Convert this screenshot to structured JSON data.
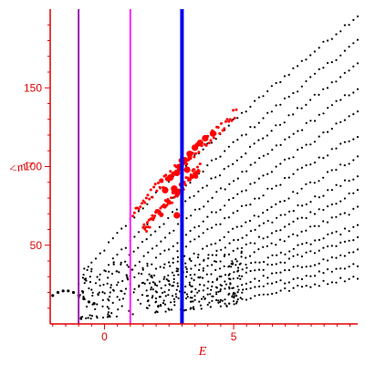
{
  "chart_data": {
    "type": "scatter",
    "title": "",
    "xlabel": "E",
    "ylabel": "<m>",
    "xlim": [
      -2.1,
      9.8
    ],
    "ylim": [
      0,
      200
    ],
    "x_ticks": [
      "0",
      "5"
    ],
    "y_ticks": [
      "50",
      "100",
      "150"
    ],
    "x_tick_values": [
      0,
      5
    ],
    "y_tick_values": [
      50,
      100,
      150
    ],
    "grid": false,
    "colors": {
      "axes": "#e00000",
      "points": "#000000",
      "highlight": "#ff0000",
      "line_dark": "#9a1fb0",
      "line_magenta": "#ff22ff",
      "line_blue": "#0000ee"
    },
    "vertical_lines": [
      {
        "x": -1.0,
        "color": "line_dark"
      },
      {
        "x": 1.0,
        "color": "line_magenta"
      },
      {
        "x": 3.0,
        "color": "line_blue"
      }
    ],
    "series": [
      {
        "family": "black-bands",
        "color": "points",
        "bands": [
          {
            "x0": -1.0,
            "y0": 25,
            "x1": 9.8,
            "y1": 196
          },
          {
            "x0": -0.5,
            "y0": 22,
            "x1": 9.8,
            "y1": 180
          },
          {
            "x0": -0.2,
            "y0": 20,
            "x1": 9.8,
            "y1": 165
          },
          {
            "x0": 0.2,
            "y0": 18,
            "x1": 9.8,
            "y1": 150
          },
          {
            "x0": 0.5,
            "y0": 16,
            "x1": 9.8,
            "y1": 135
          },
          {
            "x0": 1.0,
            "y0": 18,
            "x1": 9.8,
            "y1": 120
          },
          {
            "x0": 1.3,
            "y0": 15,
            "x1": 9.8,
            "y1": 106
          },
          {
            "x0": 1.7,
            "y0": 15,
            "x1": 9.8,
            "y1": 94
          },
          {
            "x0": 2.0,
            "y0": 15,
            "x1": 9.8,
            "y1": 84
          },
          {
            "x0": 2.3,
            "y0": 15,
            "x1": 9.8,
            "y1": 73
          },
          {
            "x0": 2.7,
            "y0": 15,
            "x1": 9.8,
            "y1": 62
          },
          {
            "x0": 3.0,
            "y0": 14,
            "x1": 9.8,
            "y1": 55
          },
          {
            "x0": 3.5,
            "y0": 14,
            "x1": 9.8,
            "y1": 46
          },
          {
            "x0": 4.0,
            "y0": 13,
            "x1": 9.8,
            "y1": 38
          },
          {
            "x0": 4.5,
            "y0": 12,
            "x1": 9.8,
            "y1": 30
          }
        ]
      },
      {
        "family": "black-low-cluster",
        "color": "points",
        "x_range": [
          -1.0,
          5.5
        ],
        "y_range": [
          4,
          40
        ]
      },
      {
        "family": "black-hook",
        "color": "points",
        "points": [
          [
            -2.0,
            18
          ],
          [
            -1.8,
            20
          ],
          [
            -1.6,
            21
          ],
          [
            -1.4,
            21
          ],
          [
            -1.2,
            20
          ],
          [
            -1.0,
            18
          ],
          [
            -0.8,
            16
          ],
          [
            -0.6,
            14
          ],
          [
            -0.4,
            13
          ]
        ]
      },
      {
        "family": "red-upper",
        "color": "highlight",
        "x_range": [
          1.1,
          5.1
        ],
        "y_from": 72,
        "y_to": 134
      },
      {
        "family": "red-lower",
        "color": "highlight",
        "x_range": [
          1.5,
          3.7
        ],
        "y_from": 60,
        "y_to": 100
      },
      {
        "family": "red-large",
        "color": "highlight",
        "points": [
          [
            2.35,
            85
          ],
          [
            2.55,
            93
          ],
          [
            2.7,
            86
          ],
          [
            2.8,
            96
          ],
          [
            2.95,
            100
          ],
          [
            3.1,
            104
          ],
          [
            3.3,
            108
          ],
          [
            3.5,
            112
          ],
          [
            3.7,
            115
          ],
          [
            2.8,
            69
          ],
          [
            3.2,
            98
          ],
          [
            3.9,
            118
          ],
          [
            4.2,
            121
          ]
        ]
      }
    ]
  }
}
